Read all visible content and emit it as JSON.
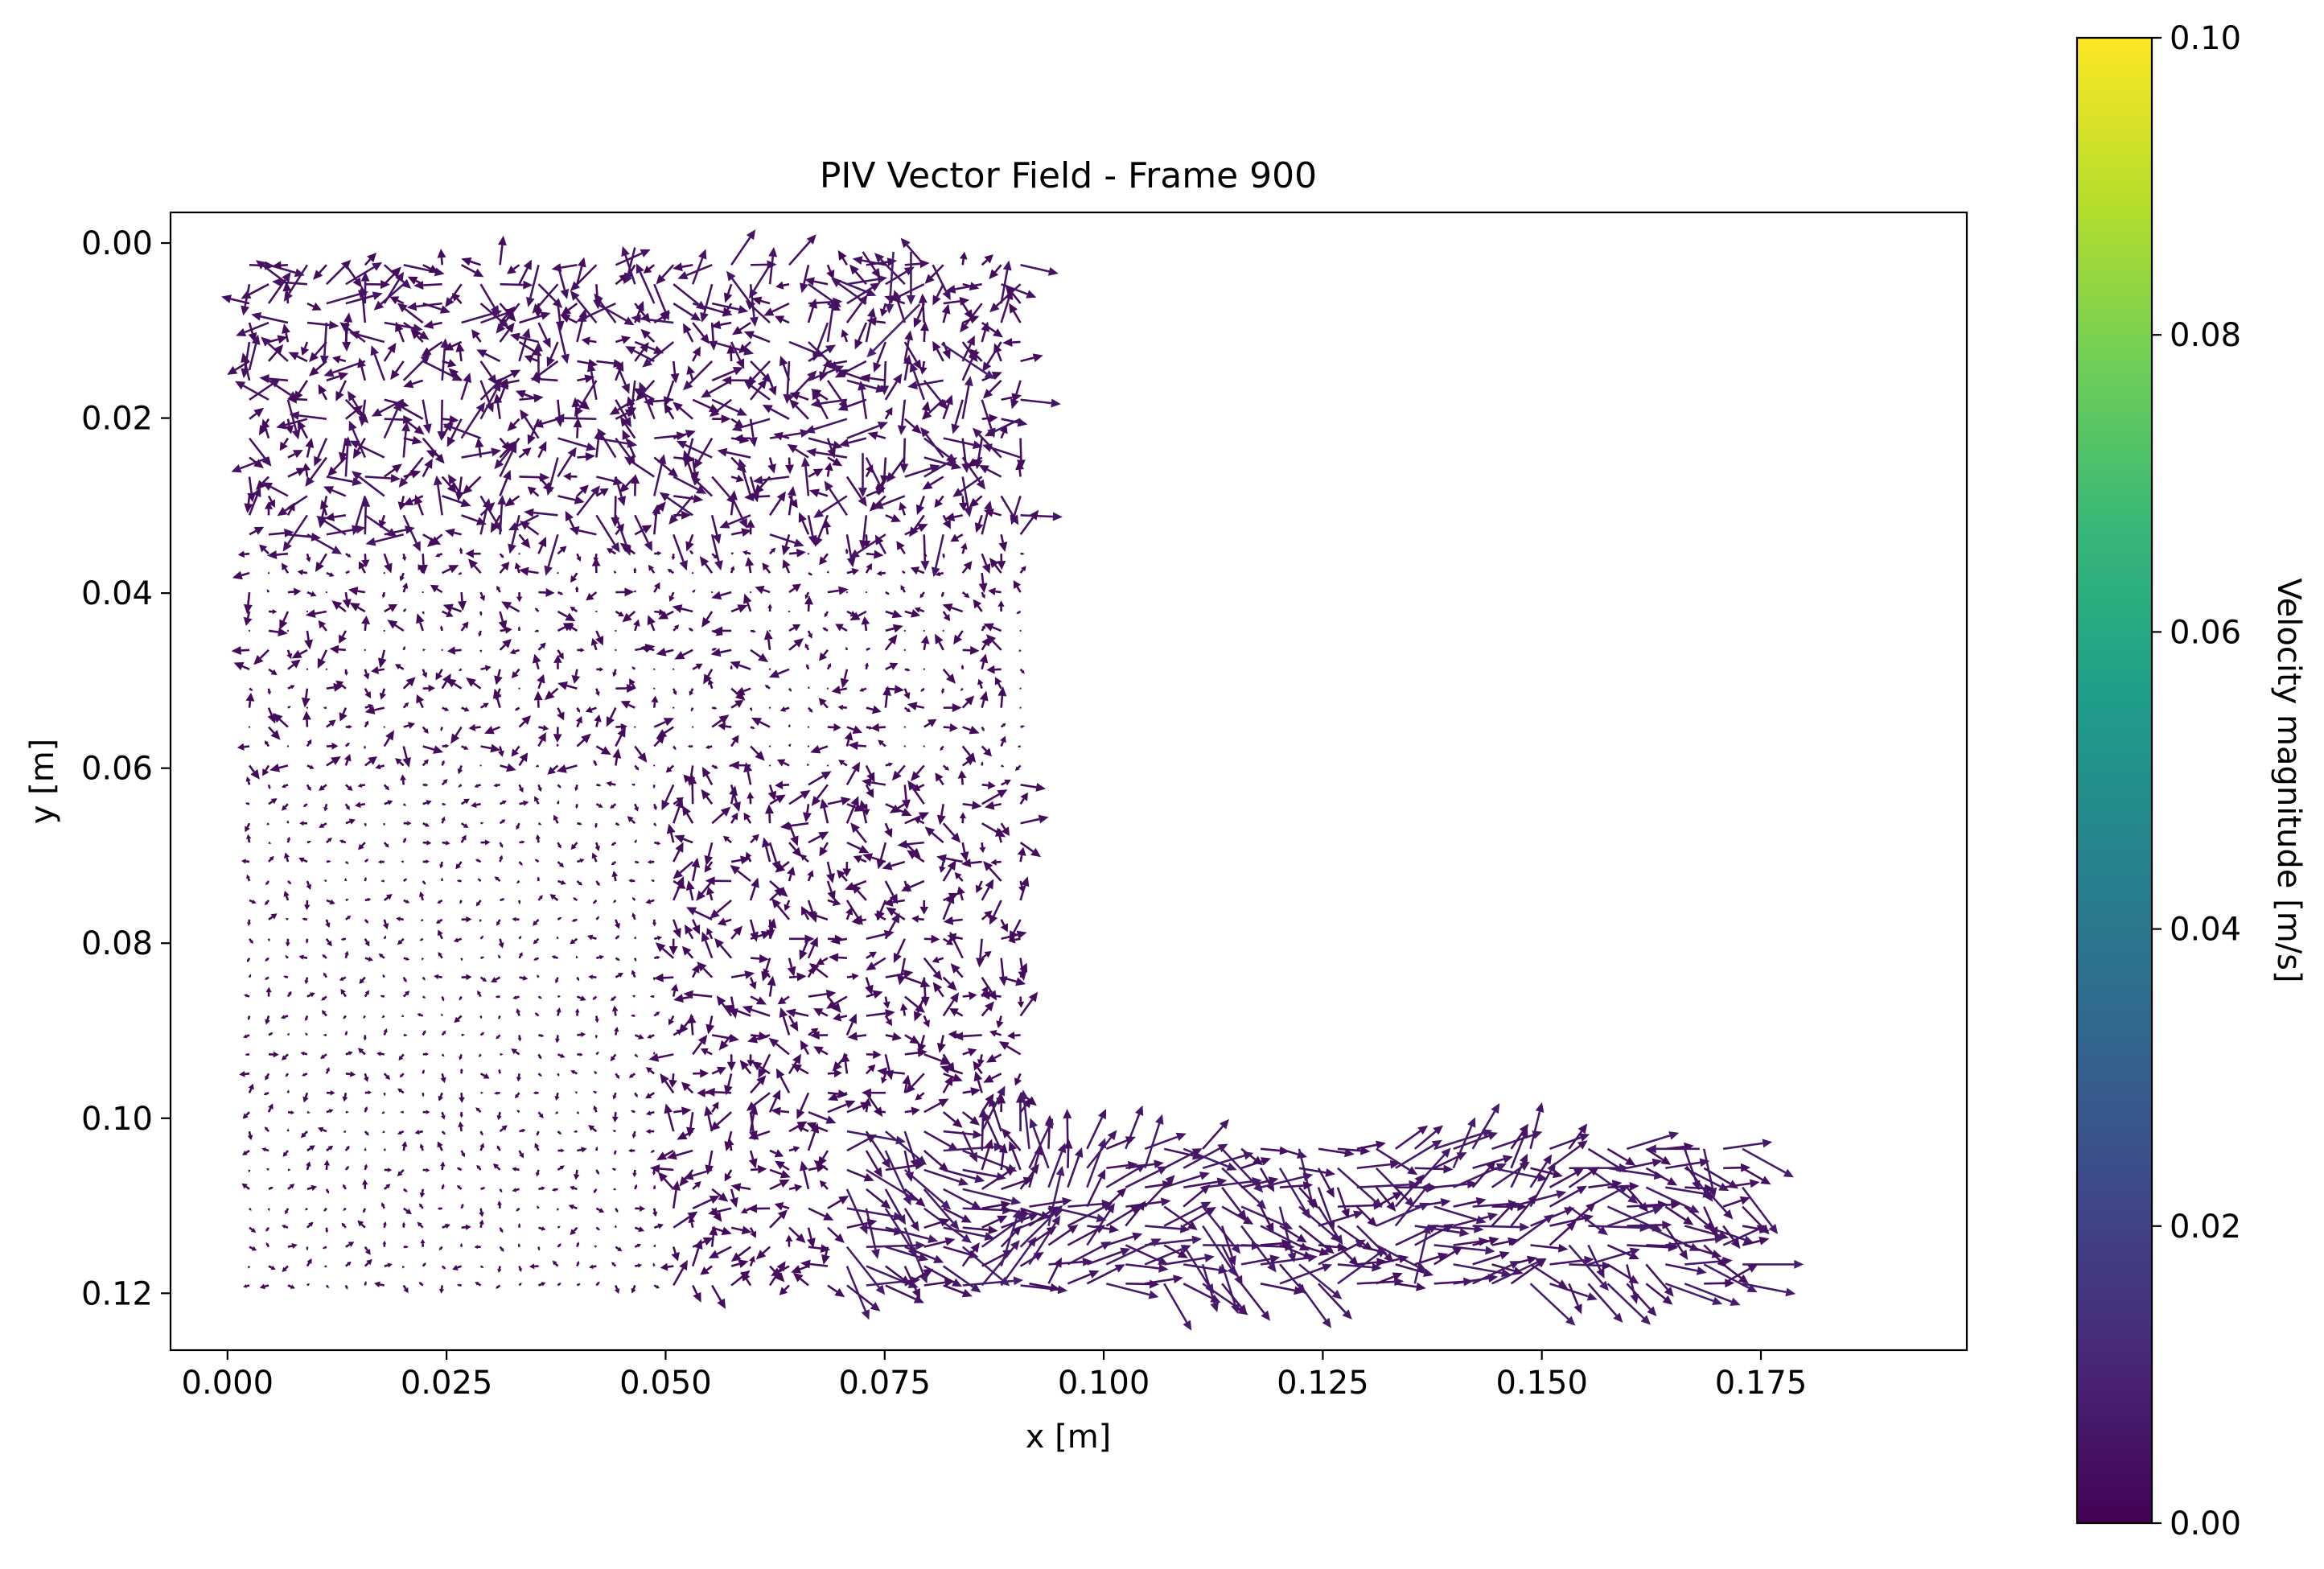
{
  "chart_data": {
    "type": "quiver",
    "title": "PIV Vector Field - Frame 900",
    "xlabel": "x [m]",
    "ylabel": "y [m]",
    "xlim": [
      -0.0065,
      0.1985
    ],
    "ylim": [
      0.1265,
      -0.0035
    ],
    "y_inverted": true,
    "x_ticks": [
      "0.000",
      "0.025",
      "0.050",
      "0.075",
      "0.100",
      "0.125",
      "0.150",
      "0.175"
    ],
    "x_tick_values": [
      0.0,
      0.025,
      0.05,
      0.075,
      0.1,
      0.125,
      0.15,
      0.175
    ],
    "y_ticks": [
      "0.00",
      "0.02",
      "0.04",
      "0.06",
      "0.08",
      "0.10",
      "0.12"
    ],
    "y_tick_values": [
      0.0,
      0.02,
      0.04,
      0.06,
      0.08,
      0.1,
      0.12
    ],
    "grid": false,
    "colorbar": {
      "label": "Velocity magnitude [m/s]",
      "colormap": "viridis",
      "range": [
        0.0,
        0.1
      ],
      "ticks": [
        "0.00",
        "0.02",
        "0.04",
        "0.06",
        "0.08",
        "0.10"
      ],
      "tick_values": [
        0.0,
        0.02,
        0.04,
        0.06,
        0.08,
        0.1
      ],
      "colors": [
        "#440154",
        "#482878",
        "#3e4989",
        "#31688e",
        "#26828e",
        "#1f9e89",
        "#35b779",
        "#6ece58",
        "#b5de2b",
        "#fde725"
      ]
    },
    "vector_grid": {
      "upper_region": {
        "x_range": [
          0.0025,
          0.0915
        ],
        "y_range": [
          0.0025,
          0.121
        ],
        "spacing": 0.0022
      },
      "lower_region": {
        "x_range": [
          0.0915,
          0.175
        ],
        "y_range": [
          0.1035,
          0.121
        ],
        "spacing": 0.0022
      },
      "typical_speed_range": [
        0.0,
        0.012
      ]
    },
    "notable_vectors": [
      {
        "x": 0.069,
        "y": 0.004,
        "u": 0.005,
        "v": 0.002
      },
      {
        "x": 0.079,
        "y": 0.007,
        "u": -0.006,
        "v": 0.006
      },
      {
        "x": 0.076,
        "y": 0.001,
        "u": -0.0005,
        "v": 0.007
      },
      {
        "x": 0.078,
        "y": 0.001,
        "u": 0.0,
        "v": 0.006
      },
      {
        "x": 0.0805,
        "y": 0.0025,
        "u": 0.002,
        "v": 0.004
      },
      {
        "x": 0.0815,
        "y": 0.0115,
        "u": 0.006,
        "v": 0.004
      },
      {
        "x": 0.0725,
        "y": 0.001,
        "u": 0.002,
        "v": 0.003
      },
      {
        "x": 0.168,
        "y": 0.1035,
        "u": -0.006,
        "v": 0.0
      },
      {
        "x": 0.1665,
        "y": 0.1055,
        "u": 0.003,
        "v": 0.004
      },
      {
        "x": 0.0465,
        "y": 0.0005,
        "u": -0.001,
        "v": 0.004
      },
      {
        "x": 0.0725,
        "y": 0.024,
        "u": 0.0,
        "v": 0.005
      },
      {
        "x": 0.0025,
        "y": 0.0145,
        "u": 0.001,
        "v": -0.004
      }
    ]
  }
}
